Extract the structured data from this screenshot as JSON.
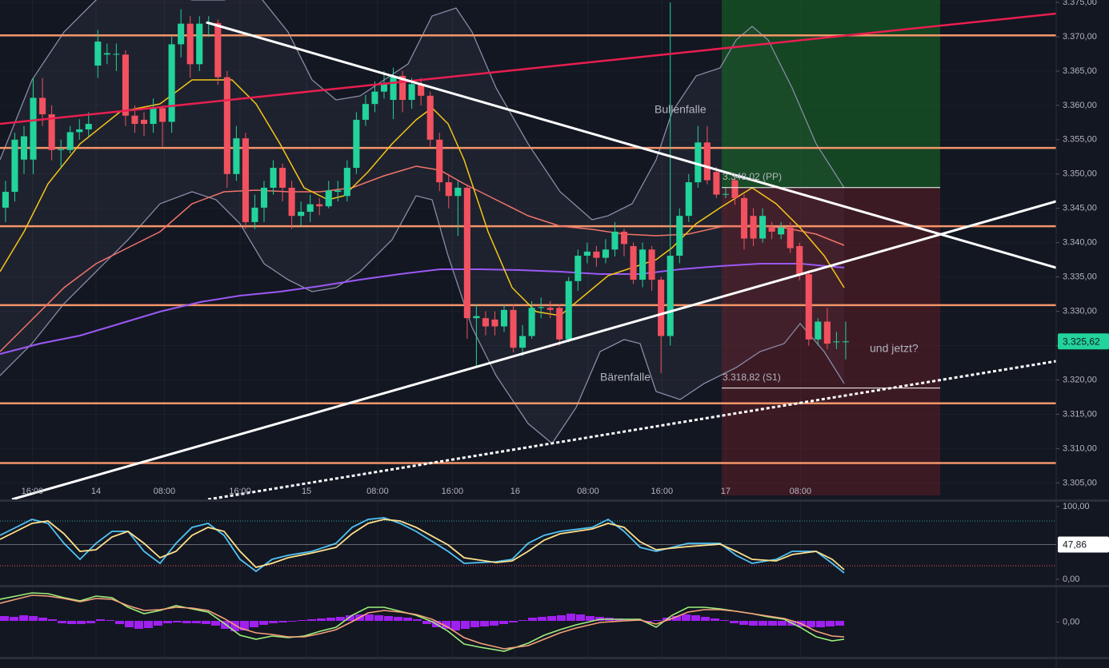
{
  "chart_data": {
    "type": "candlestick",
    "xlim": [
      -0.6,
      113.8
    ],
    "xticks": [
      {
        "value": 2.9,
        "label": "16:00"
      },
      {
        "value": 9.8,
        "label": "14"
      },
      {
        "value": 17.2,
        "label": "08:00"
      },
      {
        "value": 25.4,
        "label": "16:00"
      },
      {
        "value": 32.6,
        "label": "15"
      },
      {
        "value": 40.3,
        "label": "08:00"
      },
      {
        "value": 48.4,
        "label": "16:00"
      },
      {
        "value": 55.2,
        "label": "16"
      },
      {
        "value": 63.1,
        "label": "08:00"
      },
      {
        "value": 71.1,
        "label": "16:00"
      },
      {
        "value": 78,
        "label": "17"
      },
      {
        "value": 86.1,
        "label": "08:00"
      }
    ],
    "ylim": [
      3302.6,
      3375.35
    ],
    "yticks": [
      {
        "value": 3305,
        "label": "3.305,00"
      },
      {
        "value": 3310,
        "label": "3.310,00"
      },
      {
        "value": 3315,
        "label": "3.315,00"
      },
      {
        "value": 3320,
        "label": "3.320,00"
      },
      {
        "value": 3325,
        "label": "3.325,00"
      },
      {
        "value": 3330,
        "label": "3.330,00"
      },
      {
        "value": 3335,
        "label": "3.335,00"
      },
      {
        "value": 3340,
        "label": "3.340,00"
      },
      {
        "value": 3345,
        "label": "3.345,00"
      },
      {
        "value": 3350,
        "label": "3.350,00"
      },
      {
        "value": 3355,
        "label": "3.355,00"
      },
      {
        "value": 3360,
        "label": "3.360,00"
      },
      {
        "value": 3365,
        "label": "3.365,00"
      },
      {
        "value": 3370,
        "label": "3.370,00"
      },
      {
        "value": 3375,
        "label": "3.375,00"
      }
    ],
    "up_color": "#22d39b",
    "down_color": "#f2515f",
    "level_color": "#f4956a",
    "ohlc": [
      [
        3345.1,
        3349,
        3343,
        3347.4
      ],
      [
        3347.4,
        3356,
        3346,
        3355
      ],
      [
        3352.1,
        3357,
        3350,
        3355.5
      ],
      [
        3352.1,
        3364,
        3350,
        3361.1
      ],
      [
        3361.1,
        3364,
        3357,
        3358.7
      ],
      [
        3358.7,
        3360,
        3352,
        3353.5
      ],
      [
        3353.5,
        3355,
        3351,
        3353.6
      ],
      [
        3353.5,
        3357,
        3353,
        3356.1
      ],
      [
        3356.1,
        3358,
        3355,
        3356.5
      ],
      [
        3356.5,
        3359,
        3355.5,
        3357.3
      ],
      [
        3365.8,
        3371,
        3364,
        3369.3
      ],
      [
        3367.4,
        3369,
        3366,
        3367.6
      ],
      [
        3367.4,
        3369,
        3365,
        3367.5
      ],
      [
        3367.4,
        3368,
        3357,
        3358.5
      ],
      [
        3358.5,
        3360,
        3356,
        3357.3
      ],
      [
        3357.9,
        3359,
        3355.5,
        3357.3
      ],
      [
        3357.3,
        3361,
        3356,
        3359.6
      ],
      [
        3359.6,
        3360,
        3354,
        3357.6
      ],
      [
        3357.6,
        3370,
        3356,
        3368.9
      ],
      [
        3368.9,
        3374,
        3367,
        3371.9
      ],
      [
        3371.9,
        3373,
        3364,
        3366
      ],
      [
        3366,
        3373,
        3365,
        3371.9
      ],
      [
        3372,
        3373,
        3370,
        3372.1
      ],
      [
        3372,
        3372.5,
        3363,
        3364.1
      ],
      [
        3364.1,
        3365,
        3348,
        3350
      ],
      [
        3350,
        3357,
        3349,
        3355.2
      ],
      [
        3355.2,
        3356,
        3342,
        3343
      ],
      [
        3343,
        3347,
        3342,
        3345.1
      ],
      [
        3345.1,
        3349,
        3343,
        3348
      ],
      [
        3348,
        3352,
        3347,
        3350.9
      ],
      [
        3350.9,
        3351.5,
        3346,
        3348
      ],
      [
        3348,
        3349,
        3342,
        3343.9
      ],
      [
        3343.9,
        3346,
        3342.5,
        3344.5
      ],
      [
        3344.5,
        3347,
        3343,
        3345.6
      ],
      [
        3345.6,
        3346.5,
        3344,
        3345.3
      ],
      [
        3345.3,
        3349,
        3345,
        3347.6
      ],
      [
        3347.4,
        3349,
        3346,
        3347.6
      ],
      [
        3346.8,
        3352,
        3346,
        3350.9
      ],
      [
        3350.9,
        3359,
        3350,
        3357.9
      ],
      [
        3357.9,
        3361.5,
        3357,
        3360.2
      ],
      [
        3360.2,
        3363.5,
        3359,
        3362
      ],
      [
        3362,
        3365,
        3361,
        3363.1
      ],
      [
        3360.8,
        3365.5,
        3358,
        3364.3
      ],
      [
        3364.3,
        3365,
        3359,
        3360.8
      ],
      [
        3360.8,
        3364,
        3359.5,
        3363.1
      ],
      [
        3363.1,
        3364,
        3360,
        3361.4
      ],
      [
        3361.4,
        3362,
        3354,
        3355
      ],
      [
        3355,
        3356,
        3347.5,
        3348.8
      ],
      [
        3348.8,
        3350,
        3345,
        3346.8
      ],
      [
        3346.8,
        3349,
        3341,
        3348
      ],
      [
        3348,
        3348.5,
        3326,
        3329
      ],
      [
        3329,
        3331,
        3322,
        3329.3
      ],
      [
        3329,
        3330,
        3326.5,
        3327.8
      ],
      [
        3328.8,
        3330,
        3326.5,
        3327.8
      ],
      [
        3327.8,
        3331,
        3327,
        3330.2
      ],
      [
        3330.2,
        3331,
        3324,
        3324.7
      ],
      [
        3324.7,
        3328,
        3323.5,
        3326.4
      ],
      [
        3326.4,
        3331.5,
        3326,
        3330.5
      ],
      [
        3330.5,
        3332,
        3329,
        3330.6
      ],
      [
        3330.5,
        3331.5,
        3329,
        3330.2
      ],
      [
        3330.5,
        3331,
        3325,
        3325.9
      ],
      [
        3325.9,
        3335,
        3325.5,
        3334.4
      ],
      [
        3334.4,
        3339,
        3333,
        3338.1
      ],
      [
        3338.1,
        3340,
        3337,
        3338.7
      ],
      [
        3338.7,
        3339.5,
        3336.5,
        3337.8
      ],
      [
        3337.8,
        3340.5,
        3337,
        3339
      ],
      [
        3339,
        3343,
        3338,
        3341.6
      ],
      [
        3341.6,
        3342,
        3338,
        3339.8
      ],
      [
        3339.5,
        3340,
        3334,
        3334.6
      ],
      [
        3334.6,
        3340,
        3333.5,
        3339
      ],
      [
        3339,
        3339.5,
        3333,
        3334.6
      ],
      [
        3334.6,
        3335,
        3321,
        3326.4
      ],
      [
        3326.4,
        3375,
        3325,
        3338.1
      ],
      [
        3338.1,
        3345,
        3337,
        3343.9
      ],
      [
        3343.9,
        3350,
        3343,
        3348.8
      ],
      [
        3348.8,
        3357,
        3348,
        3354.6
      ],
      [
        3354.6,
        3357,
        3348.5,
        3349.1
      ],
      [
        3350.3,
        3351,
        3346.5,
        3347
      ],
      [
        3347,
        3348,
        3346.5,
        3347.1
      ],
      [
        3349.1,
        3350,
        3345.5,
        3346.5
      ],
      [
        3346.5,
        3347,
        3339,
        3340.6
      ],
      [
        3343.9,
        3345,
        3339.5,
        3340.6
      ],
      [
        3340.6,
        3345,
        3340,
        3343.9
      ],
      [
        3342.2,
        3343,
        3340.5,
        3341.6
      ],
      [
        3341.2,
        3343,
        3340.5,
        3342.2
      ],
      [
        3342.2,
        3343,
        3338.5,
        3339.2
      ],
      [
        3339.5,
        3340,
        3334.5,
        3335.4
      ],
      [
        3335.4,
        3336,
        3325,
        3325.9
      ],
      [
        3325.9,
        3329,
        3325,
        3328.5
      ],
      [
        3328.5,
        3330.5,
        3324.5,
        3325.3
      ],
      [
        3325.5,
        3327,
        3324.5,
        3325.6
      ],
      [
        3325.5,
        3328.5,
        3323,
        3325.62
      ]
    ],
    "levels": [
      3370.2,
      3353.8,
      3342.4,
      3330.9,
      3316.6,
      3307.9
    ],
    "pivots": [
      {
        "value": 3348.02,
        "label": "3.348,02 (PP)"
      },
      {
        "value": 3318.82,
        "label": "3.318,82 (S1)"
      }
    ],
    "last_price": {
      "value": 3325.62,
      "label": "3.325,62"
    },
    "annotations": [
      "Bullenfalle",
      "Bärenfalle",
      "und jetzt?"
    ],
    "oscillators": [
      {
        "ylim": [
          -7.7,
          106.6
        ],
        "yticks": [
          {
            "value": 100,
            "label": "100,00"
          },
          {
            "value": 0,
            "label": "0,00"
          }
        ],
        "last": {
          "value": 47.86,
          "label": "47,86"
        }
      },
      {
        "ylim": [
          -1.1,
          1.1
        ],
        "yticks": [
          {
            "value": 0,
            "label": "0,00"
          }
        ]
      }
    ]
  }
}
